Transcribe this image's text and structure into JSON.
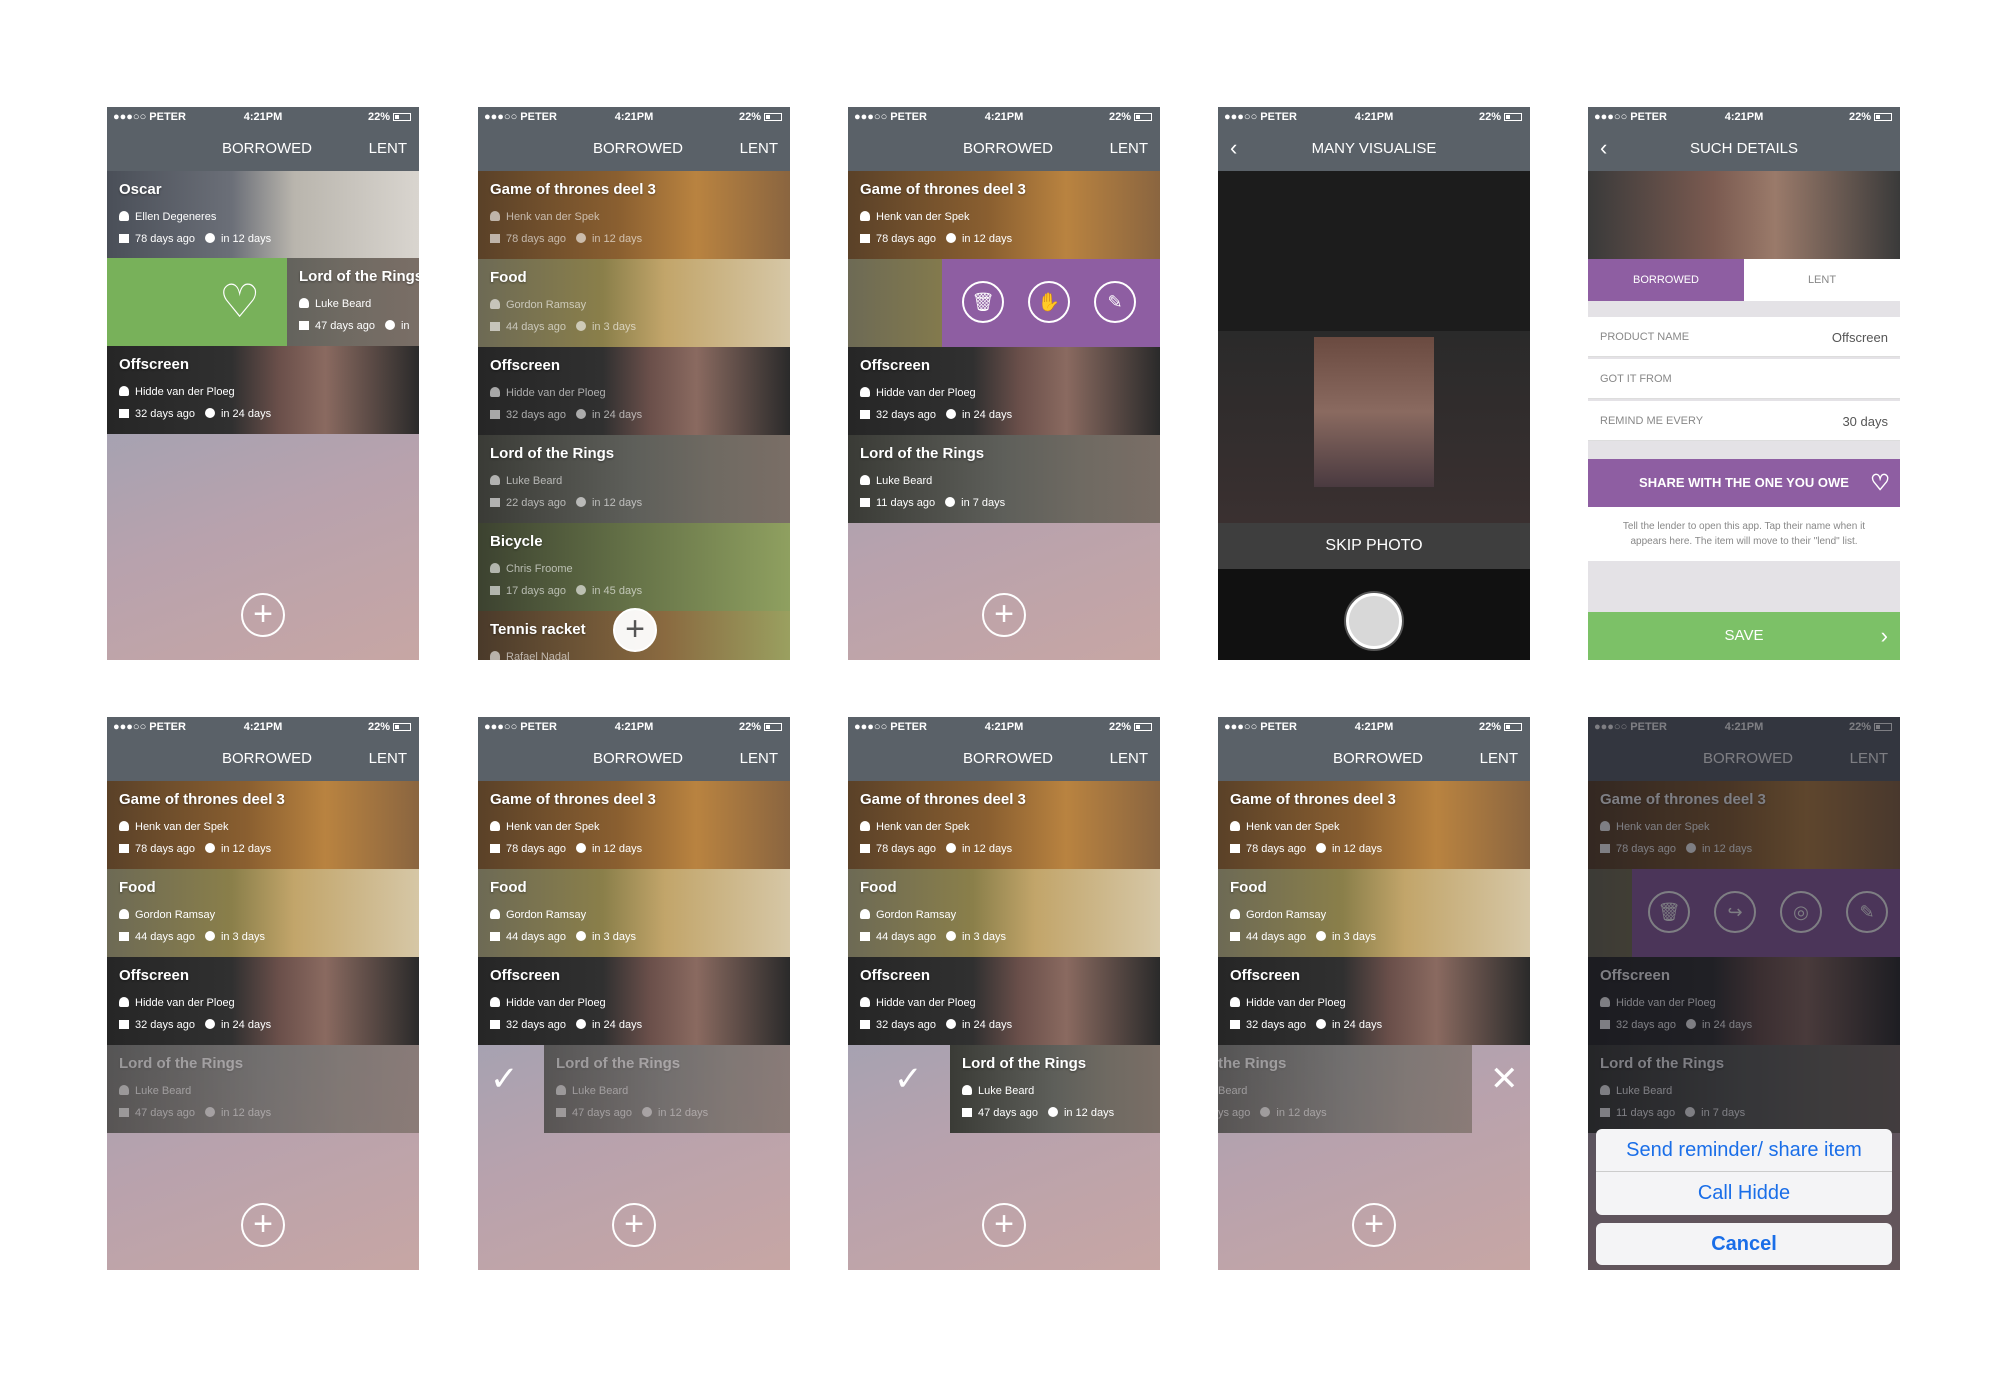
{
  "status": {
    "carrier": "●●●○○ PETER",
    "time": "4:21PM",
    "battery": "22%"
  },
  "nav": {
    "borrowed": "BORROWED",
    "lent": "LENT",
    "visualise_title": "MANY VISUALISE",
    "details_title": "SUCH DETAILS"
  },
  "items": {
    "oscar": {
      "title": "Oscar",
      "name": "Ellen Degeneres",
      "ago": "78 days ago",
      "due": "in 12 days"
    },
    "lotr47": {
      "title": "Lord of the Rings",
      "name": "Luke Beard",
      "ago": "47 days ago",
      "due": "in 12 days",
      "due_short": "in"
    },
    "off": {
      "title": "Offscreen",
      "name": "Hidde van der Ploeg",
      "ago": "32 days ago",
      "due": "in 24 days"
    },
    "got": {
      "title": "Game of thrones deel 3",
      "name": "Henk van der Spek",
      "ago": "78 days ago",
      "due": "in 12 days"
    },
    "food": {
      "title": "Food",
      "name": "Gordon Ramsay",
      "ago": "44 days ago",
      "due": "in 3 days"
    },
    "lotr22": {
      "title": "Lord of the Rings",
      "name": "Luke Beard",
      "ago": "22 days ago",
      "due": "in 12 days"
    },
    "bike": {
      "title": "Bicycle",
      "name": "Chris Froome",
      "ago": "17 days ago",
      "due": "in 45 days"
    },
    "tennis": {
      "title": "Tennis racket",
      "name": "Rafael Nadal"
    },
    "lotr11": {
      "title": "Lord of the Rings",
      "name": "Luke Beard",
      "ago": "11 days ago",
      "due": "in 7 days"
    },
    "lotr_trunc": {
      "title": "the Rings",
      "name": "Beard",
      "ago": "ys ago",
      "due": "in 12 days"
    }
  },
  "camera": {
    "skip": "SKIP PHOTO"
  },
  "details": {
    "seg_borrowed": "BORROWED",
    "seg_lent": "LENT",
    "product_key": "PRODUCT NAME",
    "product_val": "Offscreen",
    "from_key": "GOT IT FROM",
    "remind_key": "REMIND ME EVERY",
    "remind_val": "30 days",
    "share": "SHARE WITH THE ONE YOU OWE",
    "help": "Tell the lender to open this app. Tap their name when it appears here. The item will move to their \"lend\" list.",
    "save": "SAVE"
  },
  "actionsheet": {
    "send": "Send reminder/ share item",
    "call": "Call Hidde",
    "cancel": "Cancel"
  },
  "icons": {
    "plus": "+",
    "check": "✓",
    "close": "✕",
    "heart": "♡",
    "back": "‹",
    "chevron": "›",
    "trash": "🗑",
    "hand": "✋",
    "pencil": "✎",
    "share": "↪",
    "eye": "◎"
  }
}
